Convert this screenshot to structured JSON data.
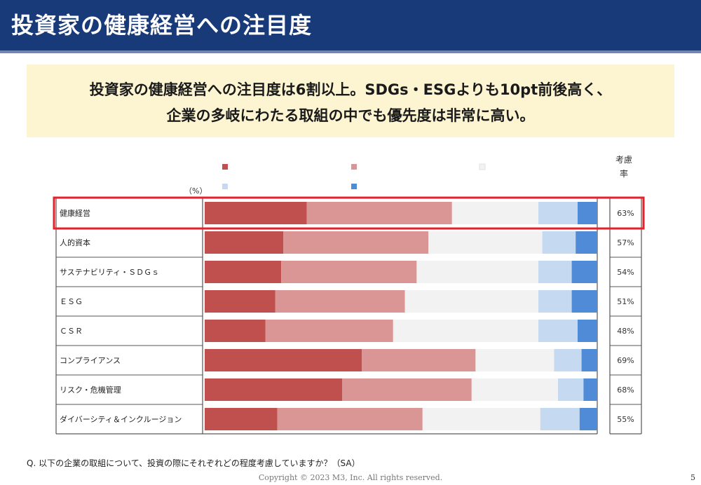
{
  "header": {
    "title": "投資家の健康経営への注目度"
  },
  "callout": {
    "line1": "投資家の健康経営への注目度は6割以上。SDGs・ESGよりも10pt前後高く、",
    "line2": "企業の多岐にわたる取組の中でも優先度は非常に高い。"
  },
  "footer": {
    "question": "Q. 以下の企業の取組について、投資の際にそれぞれどの程度考慮していますか？（SA）",
    "copyright": "Copyright © 2023  M3, Inc.  All rights reserved.",
    "page_number": "5"
  },
  "chart_data": {
    "type": "bar",
    "orientation": "horizontal-stacked-100",
    "unit_label": "（%）",
    "rate_header": "考慮率",
    "highlighted_category": "健康経営",
    "categories": [
      "健康経営",
      "人的資本",
      "サステナビリティ・ＳＤＧｓ",
      "ＥＳＧ",
      "ＣＳＲ",
      "コンプライアンス",
      "リスク・危機管理",
      "ダイバーシティ＆インクルージョン"
    ],
    "series": [
      {
        "color": "#c0504d",
        "values": [
          26,
          20,
          19.5,
          18,
          15.5,
          40,
          35,
          18.5
        ]
      },
      {
        "color": "#da9694",
        "values": [
          37,
          37,
          34.5,
          33,
          32.5,
          29,
          33,
          37
        ]
      },
      {
        "color": "#f2f2f2",
        "values": [
          22,
          29,
          31,
          34,
          37,
          20,
          22,
          30
        ]
      },
      {
        "color": "#c5d9f1",
        "values": [
          10,
          8.5,
          8.5,
          8.5,
          10,
          7,
          6.5,
          10
        ]
      },
      {
        "color": "#4f8bd6",
        "values": [
          5,
          5.5,
          6.5,
          6.5,
          5,
          4,
          3.5,
          4.5
        ]
      }
    ],
    "consideration_rate": [
      "63%",
      "57%",
      "54%",
      "51%",
      "48%",
      "69%",
      "68%",
      "55%"
    ],
    "xlim": [
      0,
      100
    ],
    "grid": false,
    "legend_position": "top",
    "legend_labels_visible": false
  }
}
